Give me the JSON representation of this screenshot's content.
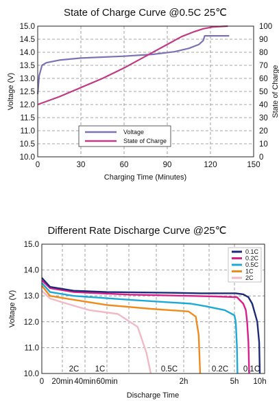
{
  "chart_data": [
    {
      "type": "line",
      "title": "State of Charge Curve @0.5C 25℃",
      "xlabel": "Charging Time (Minutes)",
      "ylabel": "Voltage (V)",
      "y2label": "State of Charge",
      "xlim": [
        0,
        150
      ],
      "ylim": [
        10.0,
        15.0
      ],
      "y2lim": [
        0,
        100
      ],
      "x_ticks": [
        "0",
        "30",
        "60",
        "90",
        "120",
        "150"
      ],
      "y_ticks": [
        "10.0",
        "10.5",
        "11.0",
        "11.5",
        "12.0",
        "12.5",
        "13.0",
        "13.5",
        "14.0",
        "14.5",
        "15.0"
      ],
      "y2_ticks": [
        "0",
        "10",
        "20",
        "30",
        "40",
        "50",
        "60",
        "70",
        "80",
        "90",
        "100"
      ],
      "grid": true,
      "legend_position": "bottom-center",
      "series": [
        {
          "name": "Voltage",
          "axis": "left",
          "color": "#7b72b4",
          "points": [
            [
              0,
              12.4
            ],
            [
              1,
              13.1
            ],
            [
              3,
              13.5
            ],
            [
              6,
              13.6
            ],
            [
              15,
              13.7
            ],
            [
              30,
              13.78
            ],
            [
              60,
              13.85
            ],
            [
              80,
              13.92
            ],
            [
              95,
              14.02
            ],
            [
              105,
              14.15
            ],
            [
              112,
              14.3
            ],
            [
              115,
              14.45
            ],
            [
              116,
              14.63
            ],
            [
              120,
              14.63
            ],
            [
              133,
              14.63
            ]
          ]
        },
        {
          "name": "State of Charge",
          "axis": "right",
          "color": "#c03a84",
          "points": [
            [
              0,
              40
            ],
            [
              15,
              46
            ],
            [
              30,
              53
            ],
            [
              45,
              60
            ],
            [
              60,
              68
            ],
            [
              75,
              77
            ],
            [
              90,
              86
            ],
            [
              100,
              92
            ],
            [
              108,
              95.5
            ],
            [
              115,
              98
            ],
            [
              122,
              99.4
            ],
            [
              132,
              100
            ]
          ]
        }
      ]
    },
    {
      "type": "line",
      "title": "Different Rate Discharge Curve @25℃",
      "xlabel": "Discharge Time",
      "ylabel": "Voltage (V)",
      "ylim": [
        10.0,
        15.0
      ],
      "y_ticks": [
        "10.0",
        "11.0",
        "12.0",
        "13.0",
        "14.0",
        "15.0"
      ],
      "x_ticks": [
        "0",
        "20min",
        "40min",
        "60min",
        "2h",
        "5h",
        "10h"
      ],
      "grid": true,
      "legend_position": "top-right",
      "series": [
        {
          "name": "0.1C",
          "label": "0.1C",
          "color": "#1c2a78",
          "points": [
            [
              0,
              13.7
            ],
            [
              0.4,
              13.35
            ],
            [
              1.5,
              13.2
            ],
            [
              3,
              13.15
            ],
            [
              6,
              13.12
            ],
            [
              10,
              13.1
            ],
            [
              18,
              13.1
            ],
            [
              24,
              13.06
            ],
            [
              28,
              12.95
            ],
            [
              31,
              12.7
            ],
            [
              33,
              12.35
            ],
            [
              35,
              12.0
            ],
            [
              36.5,
              11.2
            ],
            [
              37.2,
              10.0
            ]
          ]
        },
        {
          "name": "0.2C",
          "label": "0.2C",
          "color": "#d81f8b",
          "points": [
            [
              0,
              13.6
            ],
            [
              0.4,
              13.3
            ],
            [
              1.5,
              13.15
            ],
            [
              4,
              13.05
            ],
            [
              8,
              13.0
            ],
            [
              13,
              12.98
            ],
            [
              19,
              12.95
            ],
            [
              24,
              12.7
            ],
            [
              26,
              12.45
            ],
            [
              27,
              12.0
            ],
            [
              28,
              11.2
            ],
            [
              28.6,
              10.0
            ]
          ]
        },
        {
          "name": "0.5C",
          "label": "0.5C",
          "color": "#1ca9d6",
          "points": [
            [
              0,
              13.5
            ],
            [
              0.4,
              13.15
            ],
            [
              1.5,
              13.0
            ],
            [
              4,
              12.85
            ],
            [
              8,
              12.7
            ],
            [
              11,
              12.6
            ],
            [
              15,
              12.45
            ],
            [
              17,
              12.25
            ],
            [
              18,
              12.0
            ],
            [
              19,
              11.0
            ],
            [
              19.4,
              10.0
            ]
          ]
        },
        {
          "name": "1C",
          "label": "1C",
          "color": "#ef8a1c",
          "points": [
            [
              0,
              13.4
            ],
            [
              0.4,
              13.0
            ],
            [
              1.5,
              12.85
            ],
            [
              3,
              12.65
            ],
            [
              5,
              12.5
            ],
            [
              7.5,
              12.4
            ],
            [
              9,
              12.2
            ],
            [
              9.6,
              11.5
            ],
            [
              9.9,
              10.0
            ]
          ]
        },
        {
          "name": "2C",
          "label": "2C",
          "color": "#f2b8c6",
          "points": [
            [
              0,
              13.2
            ],
            [
              0.4,
              12.9
            ],
            [
              1.2,
              12.7
            ],
            [
              2.2,
              12.45
            ],
            [
              3.5,
              12.3
            ],
            [
              4.4,
              11.8
            ],
            [
              4.8,
              10.8
            ],
            [
              5.0,
              10.0
            ]
          ]
        }
      ]
    }
  ]
}
